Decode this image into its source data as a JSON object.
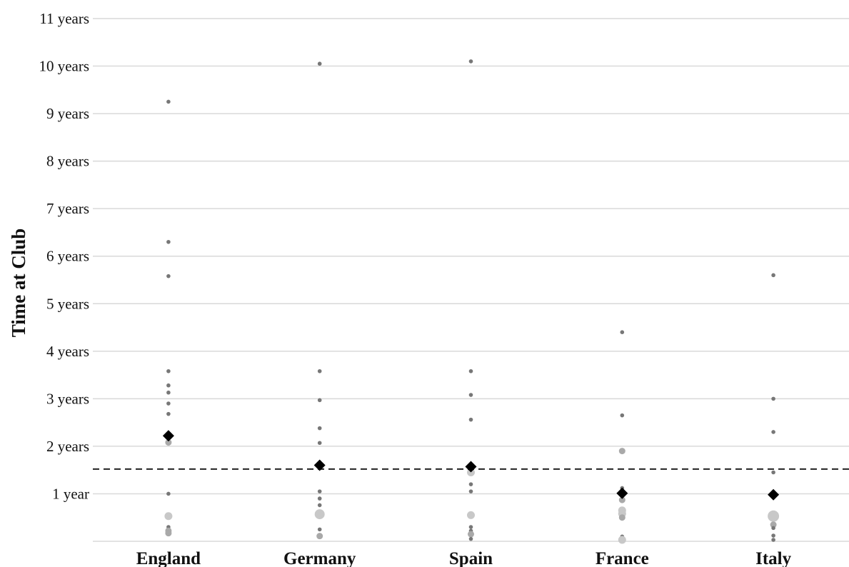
{
  "chart_data": {
    "type": "scatter",
    "ylabel": "Time at Club",
    "categories": [
      "England",
      "Germany",
      "Spain",
      "France",
      "Italy"
    ],
    "ylim": [
      0,
      11
    ],
    "y_ticks": [
      {
        "value": 1,
        "label": "1 year"
      },
      {
        "value": 2,
        "label": "2 years"
      },
      {
        "value": 3,
        "label": "3 years"
      },
      {
        "value": 4,
        "label": "4 years"
      },
      {
        "value": 5,
        "label": "5 years"
      },
      {
        "value": 6,
        "label": "6 years"
      },
      {
        "value": 7,
        "label": "7 years"
      },
      {
        "value": 8,
        "label": "8 years"
      },
      {
        "value": 9,
        "label": "9 years"
      },
      {
        "value": 10,
        "label": "10 years"
      },
      {
        "value": 11,
        "label": "11 years"
      }
    ],
    "grid": true,
    "reference_line": {
      "value": 1.52,
      "style": "dashed"
    },
    "averages": [
      2.22,
      1.6,
      1.57,
      1.01,
      0.98
    ],
    "points": [
      [
        {
          "y": 9.25,
          "size": 1
        },
        {
          "y": 6.3,
          "size": 1
        },
        {
          "y": 5.58,
          "size": 1
        },
        {
          "y": 3.58,
          "size": 1
        },
        {
          "y": 3.28,
          "size": 1
        },
        {
          "y": 3.13,
          "size": 1
        },
        {
          "y": 2.9,
          "size": 1
        },
        {
          "y": 2.68,
          "size": 1
        },
        {
          "y": 2.08,
          "size": 2
        },
        {
          "y": 1.0,
          "size": 1
        },
        {
          "y": 0.53,
          "size": 3
        },
        {
          "y": 0.3,
          "size": 1
        },
        {
          "y": 0.22,
          "size": 2
        },
        {
          "y": 0.17,
          "size": 2
        }
      ],
      [
        {
          "y": 10.05,
          "size": 1
        },
        {
          "y": 3.58,
          "size": 1
        },
        {
          "y": 2.97,
          "size": 1
        },
        {
          "y": 2.38,
          "size": 1
        },
        {
          "y": 2.07,
          "size": 1
        },
        {
          "y": 1.05,
          "size": 1
        },
        {
          "y": 0.9,
          "size": 1
        },
        {
          "y": 0.76,
          "size": 1
        },
        {
          "y": 0.57,
          "size": 4
        },
        {
          "y": 0.25,
          "size": 1
        },
        {
          "y": 0.11,
          "size": 2
        }
      ],
      [
        {
          "y": 10.1,
          "size": 1
        },
        {
          "y": 3.58,
          "size": 1
        },
        {
          "y": 3.08,
          "size": 1
        },
        {
          "y": 2.56,
          "size": 1
        },
        {
          "y": 1.45,
          "size": 3
        },
        {
          "y": 1.2,
          "size": 1
        },
        {
          "y": 1.05,
          "size": 1
        },
        {
          "y": 0.55,
          "size": 3
        },
        {
          "y": 0.3,
          "size": 1
        },
        {
          "y": 0.22,
          "size": 1
        },
        {
          "y": 0.15,
          "size": 2
        },
        {
          "y": 0.05,
          "size": 1
        }
      ],
      [
        {
          "y": 4.4,
          "size": 1
        },
        {
          "y": 2.65,
          "size": 1
        },
        {
          "y": 1.9,
          "size": 2
        },
        {
          "y": 1.12,
          "size": 1
        },
        {
          "y": 0.87,
          "size": 2
        },
        {
          "y": 0.65,
          "size": 3
        },
        {
          "y": 0.58,
          "size": 3
        },
        {
          "y": 0.5,
          "size": 2
        },
        {
          "y": 0.1,
          "size": 1
        },
        {
          "y": 0.03,
          "size": 3
        }
      ],
      [
        {
          "y": 5.6,
          "size": 1
        },
        {
          "y": 3.0,
          "size": 1
        },
        {
          "y": 2.3,
          "size": 1
        },
        {
          "y": 1.45,
          "size": 1
        },
        {
          "y": 0.53,
          "size": 5
        },
        {
          "y": 0.35,
          "size": 2
        },
        {
          "y": 0.28,
          "size": 1
        },
        {
          "y": 0.12,
          "size": 1
        },
        {
          "y": 0.03,
          "size": 1
        }
      ]
    ],
    "colors": {
      "point_dark": "#777777",
      "point_mid": "#a9a9a9",
      "point_light": "#c8c8c8",
      "average_marker": "#000000",
      "grid": "#d9d9d9",
      "reference_line": "#222222"
    }
  }
}
